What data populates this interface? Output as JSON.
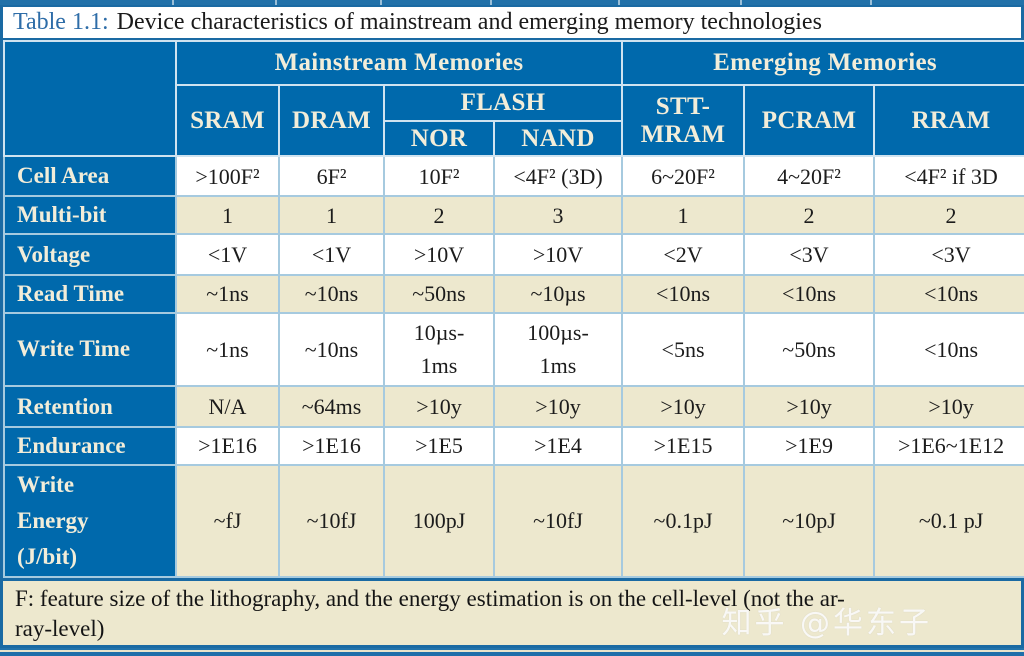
{
  "caption": {
    "prefix": "Table 1.1:",
    "title": "Device characteristics of mainstream and emerging memory technologies"
  },
  "header": {
    "mainstream_group": "Mainstream Memories",
    "emerging_group": "Emerging Memories",
    "cols": {
      "sram": "SRAM",
      "dram": "DRAM",
      "flash": "FLASH",
      "nor": "NOR",
      "nand": "NAND",
      "stt_mram": "STT-\nMRAM",
      "pcram": "PCRAM",
      "rram": "RRAM"
    }
  },
  "col_keys": [
    "sram",
    "dram",
    "nor",
    "nand",
    "stt-mram",
    "pcram",
    "rram"
  ],
  "rows": [
    {
      "label": "Cell Area",
      "shade": "white",
      "values": [
        ">100F²",
        "6F²",
        "10F²",
        "<4F² (3D)",
        "6~20F²",
        "4~20F²",
        "<4F² if 3D"
      ]
    },
    {
      "label": "Multi-bit",
      "shade": "cream",
      "values": [
        "1",
        "1",
        "2",
        "3",
        "1",
        "2",
        "2"
      ]
    },
    {
      "label": "Voltage",
      "shade": "white",
      "values": [
        "<1V",
        "<1V",
        ">10V",
        ">10V",
        "<2V",
        "<3V",
        "<3V"
      ]
    },
    {
      "label": "Read Time",
      "shade": "cream",
      "values": [
        "~1ns",
        "~10ns",
        "~50ns",
        "~10µs",
        "<10ns",
        "<10ns",
        "<10ns"
      ]
    },
    {
      "label": "Write Time",
      "shade": "white",
      "values": [
        "~1ns",
        "~10ns",
        "10µs-\n1ms",
        "100µs-\n1ms",
        "<5ns",
        "~50ns",
        "<10ns"
      ]
    },
    {
      "label": "Retention",
      "shade": "cream",
      "values": [
        "N/A",
        "~64ms",
        ">10y",
        ">10y",
        ">10y",
        ">10y",
        ">10y"
      ]
    },
    {
      "label": "Endurance",
      "shade": "white",
      "values": [
        ">1E16",
        ">1E16",
        ">1E5",
        ">1E4",
        ">1E15",
        ">1E9",
        ">1E6~1E12"
      ]
    },
    {
      "label": "Write\nEnergy\n(J/bit)",
      "shade": "cream",
      "values": [
        "~fJ",
        "~10fJ",
        "100pJ",
        "~10fJ",
        "~0.1pJ",
        "~10pJ",
        "~0.1 pJ"
      ]
    }
  ],
  "footnote": "F: feature size of the lithography, and the energy estimation is on the cell-level (not the ar-\nray-level)",
  "watermark": "知乎 @华东子",
  "colors": {
    "header_blue": "#0069ac",
    "cream": "#ede8ce",
    "frame_blue": "#1a6aa3",
    "grid_blue": "#a6cadf",
    "caption_blue": "#2e6da8",
    "header_text": "#f2edd9"
  }
}
